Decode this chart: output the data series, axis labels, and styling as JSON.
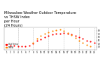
{
  "title": "Milwaukee Weather Outdoor Temperature\nvs THSW Index\nper Hour\n(24 Hours)",
  "title_fontsize": 3.5,
  "background_color": "#ffffff",
  "plot_bg_color": "#ffffff",
  "grid_color": "#bbbbbb",
  "xlim": [
    0.5,
    24.5
  ],
  "ylim": [
    20,
    90
  ],
  "ytick_right": true,
  "yticks": [
    30,
    40,
    50,
    60,
    70,
    80
  ],
  "ytick_labels": [
    "30",
    "40",
    "50",
    "60",
    "70",
    "80"
  ],
  "xticks": [
    1,
    2,
    3,
    4,
    5,
    6,
    7,
    8,
    9,
    10,
    11,
    12,
    13,
    14,
    15,
    16,
    17,
    18,
    19,
    20,
    21,
    22,
    23,
    24
  ],
  "xtick_labels": [
    "1",
    "2",
    "3",
    "4",
    "5",
    "6",
    "7",
    "8",
    "9",
    "10",
    "11",
    "12",
    "13",
    "14",
    "15",
    "16",
    "17",
    "18",
    "19",
    "20",
    "21",
    "22",
    "23",
    "24"
  ],
  "vgrid_ticks": [
    4,
    8,
    12,
    16,
    20,
    24
  ],
  "temp_hours": [
    1,
    2,
    3,
    4,
    5,
    6,
    7,
    8,
    9,
    10,
    11,
    12,
    13,
    14,
    15,
    16,
    17,
    18,
    19,
    20,
    21,
    22,
    23,
    24
  ],
  "temp_values": [
    35,
    34,
    33,
    32,
    31,
    31,
    33,
    40,
    48,
    54,
    60,
    65,
    68,
    70,
    71,
    72,
    71,
    69,
    65,
    60,
    55,
    50,
    46,
    43
  ],
  "thsw_hours": [
    8,
    9,
    10,
    11,
    12,
    13,
    14,
    15,
    16,
    17,
    18,
    19,
    20,
    21,
    22,
    23
  ],
  "thsw_values": [
    42,
    55,
    64,
    70,
    76,
    80,
    82,
    83,
    80,
    74,
    66,
    58,
    50,
    43,
    37,
    32
  ],
  "temp_color": "#ff0000",
  "thsw_color": "#ff8800",
  "dot_size": 2.5,
  "legend_labels": [
    "Out Temp",
    "THSW"
  ],
  "legend_colors": [
    "#ff0000",
    "#ff8800"
  ]
}
